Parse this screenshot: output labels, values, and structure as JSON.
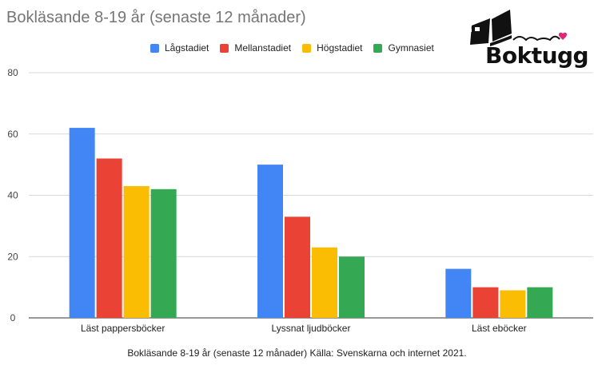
{
  "chart_data": {
    "type": "bar",
    "title": "Bokläsande 8-19 år (senaste 12 månader)",
    "caption": "Bokläsande 8-19 år (senaste 12 månader) Källa: Svenskarna och internet 2021.",
    "categories": [
      "Läst pappersböcker",
      "Lyssnat ljudböcker",
      "Läst eböcker"
    ],
    "series": [
      {
        "name": "Lågstadiet",
        "color": "#4285F4",
        "values": [
          62,
          50,
          16
        ]
      },
      {
        "name": "Mellanstadiet",
        "color": "#EA4335",
        "values": [
          52,
          33,
          10
        ]
      },
      {
        "name": "Högstadiet",
        "color": "#FBBC04",
        "values": [
          43,
          23,
          9
        ]
      },
      {
        "name": "Gymnasiet",
        "color": "#34A853",
        "values": [
          42,
          20,
          10
        ]
      }
    ],
    "ylim": [
      0,
      80
    ],
    "yticks": [
      0,
      20,
      40,
      60,
      80
    ],
    "grid": true,
    "legend": "top"
  },
  "logo": {
    "text": "Boktugg",
    "heart_color": "#E0287A"
  }
}
